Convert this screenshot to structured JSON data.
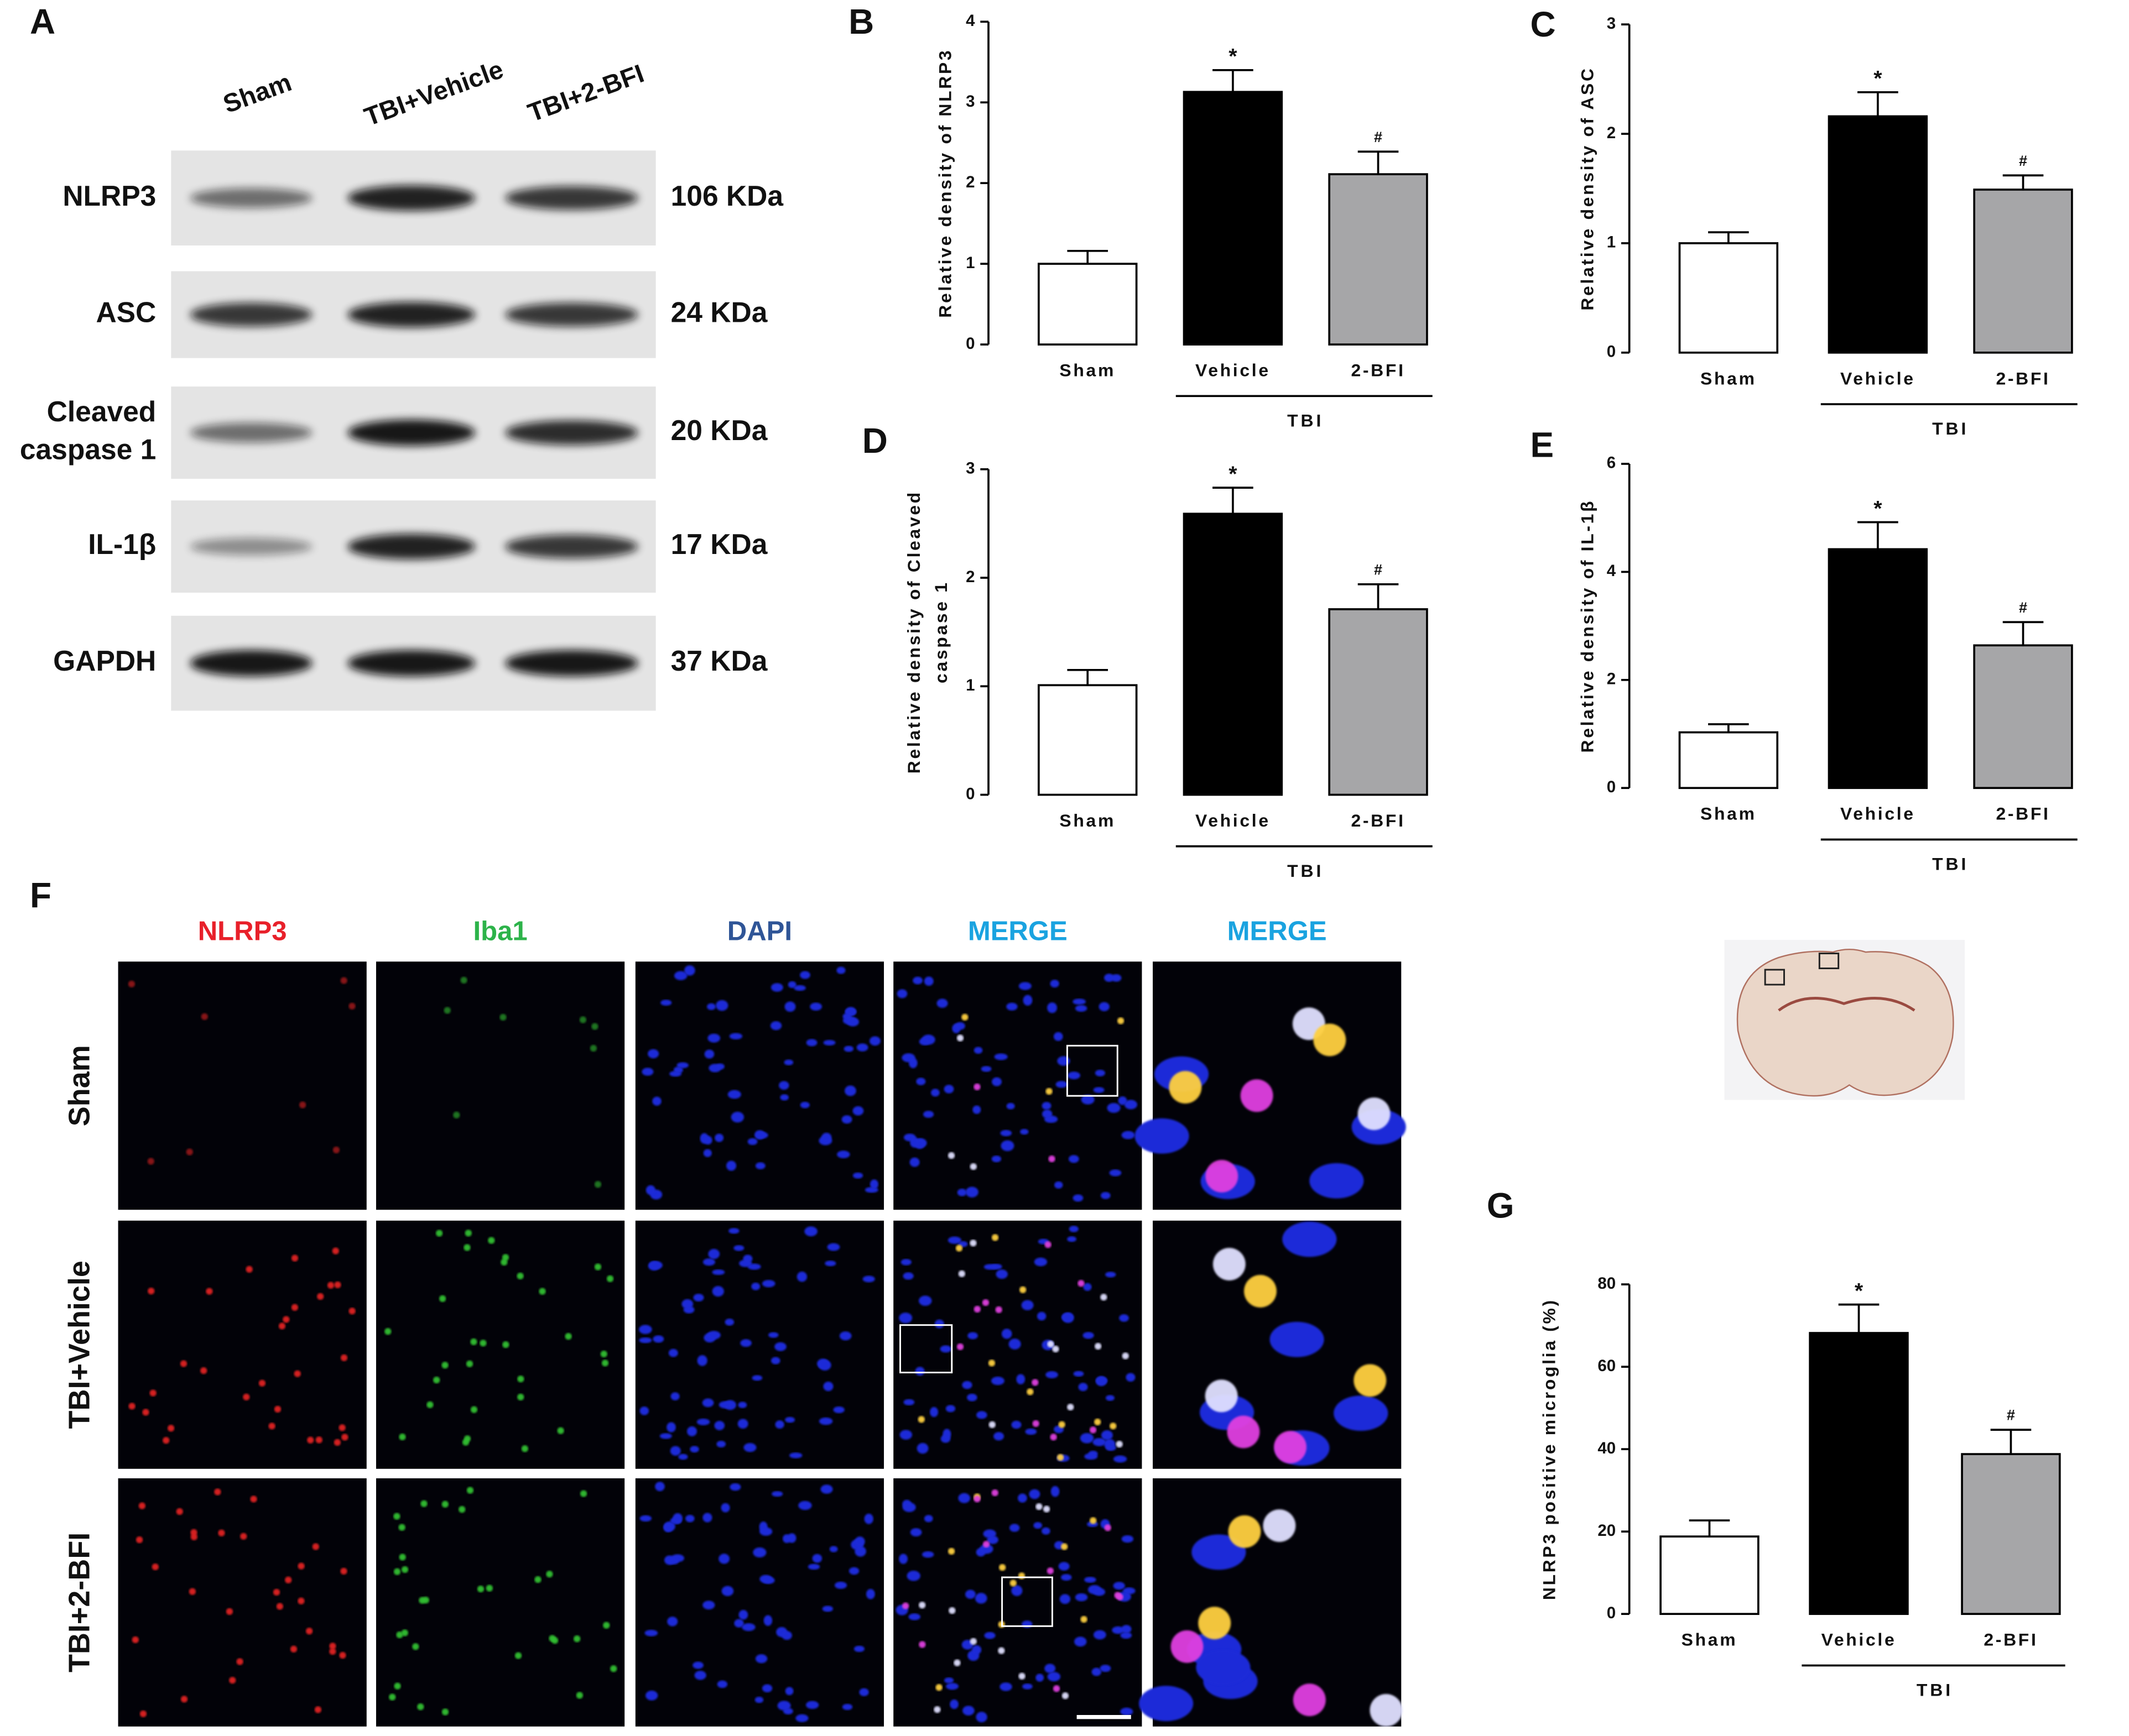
{
  "panels": {
    "blot": "A",
    "microscopy": "F"
  },
  "blot": {
    "lanes": [
      "Sham",
      "TBI+Vehicle",
      "TBI+2-BFI"
    ],
    "bands": [
      {
        "label": [
          "NLRP3"
        ],
        "size": "106 KDa"
      },
      {
        "label": [
          "ASC"
        ],
        "size": "24 KDa"
      },
      {
        "label": [
          "Cleaved",
          "caspase 1"
        ],
        "size": "20 KDa"
      },
      {
        "label": [
          "IL-1β"
        ],
        "size": "17 KDa"
      },
      {
        "label": [
          "GAPDH"
        ],
        "size": "37 KDa"
      }
    ]
  },
  "microscopy": {
    "columns": [
      {
        "label": "NLRP3",
        "color": "#e8202a"
      },
      {
        "label": "Iba1",
        "color": "#2db34a"
      },
      {
        "label": "DAPI",
        "color": "#2f5597"
      },
      {
        "label": "MERGE",
        "color": "#1aa3e0"
      },
      {
        "label": "MERGE",
        "color": "#1aa3e0"
      }
    ],
    "rows": [
      "Sham",
      "TBI+Vehicle",
      "TBI+2-BFI"
    ]
  },
  "chart_data": [
    {
      "type": "bar",
      "panel": "B",
      "ylabel": [
        "Relative density of NLRP3"
      ],
      "categories": [
        "Sham",
        "Vehicle",
        "2-BFI"
      ],
      "group": "TBI",
      "values": [
        1.0,
        3.13,
        2.11
      ],
      "errors": [
        0.16,
        0.27,
        0.28
      ],
      "colors": [
        "#ffffff",
        "#000000",
        "#a6a6a8"
      ],
      "annotations": [
        {
          "index": 1,
          "text": "*"
        },
        {
          "index": 2,
          "text": "#"
        }
      ],
      "ylim": [
        0,
        4
      ],
      "yticks": [
        0,
        1,
        2,
        3,
        4
      ]
    },
    {
      "type": "bar",
      "panel": "C",
      "ylabel": [
        "Relative density of ASC"
      ],
      "categories": [
        "Sham",
        "Vehicle",
        "2-BFI"
      ],
      "group": "TBI",
      "values": [
        1.0,
        2.16,
        1.49
      ],
      "errors": [
        0.1,
        0.22,
        0.13
      ],
      "colors": [
        "#ffffff",
        "#000000",
        "#a6a6a8"
      ],
      "annotations": [
        {
          "index": 1,
          "text": "*"
        },
        {
          "index": 2,
          "text": "#"
        }
      ],
      "ylim": [
        0,
        3
      ],
      "yticks": [
        0,
        1,
        2,
        3
      ]
    },
    {
      "type": "bar",
      "panel": "D",
      "ylabel": [
        "Relative density of Cleaved",
        "caspase 1"
      ],
      "categories": [
        "Sham",
        "Vehicle",
        "2-BFI"
      ],
      "group": "TBI",
      "values": [
        1.01,
        2.59,
        1.71
      ],
      "errors": [
        0.14,
        0.24,
        0.23
      ],
      "colors": [
        "#ffffff",
        "#000000",
        "#a6a6a8"
      ],
      "annotations": [
        {
          "index": 1,
          "text": "*"
        },
        {
          "index": 2,
          "text": "#"
        }
      ],
      "ylim": [
        0,
        3
      ],
      "yticks": [
        0,
        1,
        2,
        3
      ]
    },
    {
      "type": "bar",
      "panel": "E",
      "ylabel": [
        "Relative density of IL-1β"
      ],
      "categories": [
        "Sham",
        "Vehicle",
        "2-BFI"
      ],
      "group": "TBI",
      "values": [
        1.03,
        4.42,
        2.64
      ],
      "errors": [
        0.15,
        0.5,
        0.43
      ],
      "colors": [
        "#ffffff",
        "#000000",
        "#a6a6a8"
      ],
      "annotations": [
        {
          "index": 1,
          "text": "*"
        },
        {
          "index": 2,
          "text": "#"
        }
      ],
      "ylim": [
        0,
        6
      ],
      "yticks": [
        0,
        2,
        4,
        6
      ]
    },
    {
      "type": "bar",
      "panel": "G",
      "ylabel": [
        "NLRP3  positive microglia (%)"
      ],
      "categories": [
        "Sham",
        "Vehicle",
        "2-BFI"
      ],
      "group": "TBI",
      "values": [
        18.8,
        68.2,
        38.8
      ],
      "errors": [
        3.9,
        6.9,
        5.9
      ],
      "colors": [
        "#ffffff",
        "#000000",
        "#a6a6a8"
      ],
      "annotations": [
        {
          "index": 1,
          "text": "*"
        },
        {
          "index": 2,
          "text": "#"
        }
      ],
      "ylim": [
        0,
        80
      ],
      "yticks": [
        0,
        20,
        40,
        60,
        80
      ]
    }
  ]
}
